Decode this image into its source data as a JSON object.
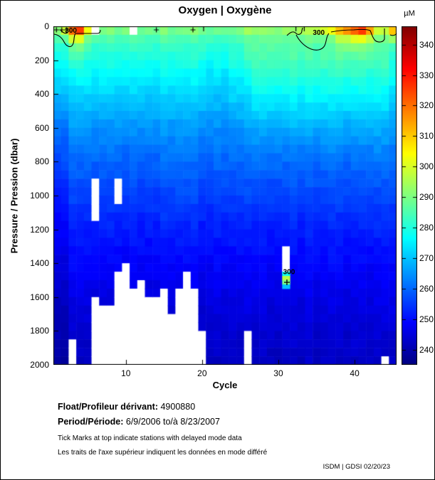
{
  "title": "Oxygen | Oxygène",
  "colorbar": {
    "unit_label": "µM",
    "ticks": [
      240,
      250,
      260,
      270,
      280,
      290,
      300,
      310,
      320,
      330,
      340
    ]
  },
  "axes": {
    "x_label": "Cycle",
    "x_ticks": [
      10,
      20,
      30,
      40
    ],
    "y_label": "Pressure / Pression (dbar)",
    "y_ticks": [
      0,
      200,
      400,
      600,
      800,
      1000,
      1200,
      1400,
      1600,
      1800,
      2000
    ]
  },
  "footer": {
    "float_label": "Float/Profileur dérivant:",
    "float_value": "4900880",
    "period_label": "Period/Période:",
    "period_value": "6/9/2006  to/à  8/23/2007",
    "note_en": "Tick Marks at top indicate stations with delayed mode data",
    "note_fr": "Les traits de l'axe supérieur indiquent les données en mode différé",
    "credit": "ISDM | GDSI  02/20/23"
  },
  "chart_data": {
    "type": "heatmap",
    "title": "Oxygen | Oxygène",
    "xlabel": "Cycle",
    "ylabel": "Pressure / Pression (dbar)",
    "value_unit": "µM",
    "x_range": [
      0.5,
      45.5
    ],
    "y_range_dbar": [
      0,
      2000
    ],
    "grid": false,
    "legend_position": "colorbar-right",
    "color_scale": {
      "colormap": "jet",
      "vmin": 235,
      "vmax": 346,
      "ticks": [
        240,
        250,
        260,
        270,
        280,
        290,
        300,
        310,
        320,
        330,
        340
      ]
    },
    "cycles": 45,
    "pressure_bin_dbar": 50,
    "base_profile": [
      [
        0,
        294
      ],
      [
        30,
        288
      ],
      [
        100,
        283
      ],
      [
        200,
        280
      ],
      [
        300,
        276
      ],
      [
        400,
        272
      ],
      [
        500,
        269
      ],
      [
        600,
        265
      ],
      [
        800,
        260
      ],
      [
        1000,
        256
      ],
      [
        1200,
        252
      ],
      [
        1400,
        249
      ],
      [
        1600,
        246
      ],
      [
        1800,
        244
      ],
      [
        2000,
        242
      ]
    ],
    "surface_o2_by_cycle": [
      300,
      315,
      338,
      346,
      318,
      300,
      297,
      299,
      295,
      297,
      294,
      296,
      298,
      295,
      297,
      294,
      296,
      295,
      297,
      294,
      296,
      293,
      295,
      294,
      296,
      299,
      295,
      296,
      294,
      295,
      296,
      294,
      300,
      303,
      307,
      313,
      318,
      324,
      332,
      342,
      346,
      330,
      312,
      306,
      330
    ],
    "surface_decay_dbar": {
      "default": 30,
      "3": 65,
      "4": 65,
      "5": 50,
      "38": 55,
      "39": 55,
      "40": 55,
      "41": 55,
      "42": 50,
      "45": 45
    },
    "right_side_bump": {
      "cycles": [
        27,
        44
      ],
      "amplitude": 4.5,
      "center_dbar": 300,
      "width_dbar": 380
    },
    "light_streak": {
      "cycle": 26,
      "amplitude": 3.2,
      "extent_dbar": 700
    },
    "dark_streak": {
      "cycles": [
        21,
        23
      ],
      "amplitude": -2.5,
      "center_dbar": 300,
      "halfwidth_dbar": 450
    },
    "deep_dark_early": {
      "cycles": [
        1,
        2
      ],
      "amplitude": -3
    },
    "noise_amplitude": 1.3,
    "missing_data": {
      "3": [
        [
          1840,
          2000
        ]
      ],
      "6": [
        [
          0,
          45
        ],
        [
          905,
          1160
        ],
        [
          1610,
          2000
        ]
      ],
      "7": [
        [
          1640,
          2000
        ]
      ],
      "8": [
        [
          1660,
          2000
        ]
      ],
      "9": [
        [
          905,
          1060
        ],
        [
          1470,
          2000
        ]
      ],
      "10": [
        [
          1400,
          2000
        ]
      ],
      "11": [
        [
          0,
          45
        ],
        [
          1530,
          2000
        ]
      ],
      "12": [
        [
          1520,
          2000
        ]
      ],
      "13": [
        [
          1590,
          2000
        ]
      ],
      "14": [
        [
          1600,
          2000
        ]
      ],
      "15": [
        [
          1540,
          2000
        ]
      ],
      "16": [
        [
          1680,
          2000
        ]
      ],
      "17": [
        [
          1560,
          2000
        ]
      ],
      "18": [
        [
          1460,
          2000
        ]
      ],
      "19": [
        [
          1550,
          2000
        ]
      ],
      "20": [
        [
          1780,
          2000
        ]
      ],
      "26": [
        [
          1780,
          2000
        ]
      ],
      "31": [
        [
          1310,
          1455
        ]
      ],
      "44": [
        [
          1950,
          2000
        ]
      ]
    },
    "anomaly_spot": {
      "cycle": 31,
      "sub_bin_dbar": 25,
      "values_by_pressure": [
        [
          1450,
          278
        ],
        [
          1475,
          297
        ],
        [
          1500,
          290
        ],
        [
          1525,
          270
        ]
      ]
    },
    "contour_labels": [
      {
        "text": "300",
        "cycle": 2.8,
        "dbar": 20
      },
      {
        "text": "300",
        "cycle": 35.3,
        "dbar": 38
      },
      {
        "text": "300",
        "cycle": 31.4,
        "dbar": 1452
      }
    ],
    "delayed_mode_plus_cycles": [
      0.9,
      1.6,
      2.2,
      14.0,
      18.8
    ],
    "delayed_mode_tick_cycles": [
      20.2,
      32.3,
      33.4
    ]
  }
}
